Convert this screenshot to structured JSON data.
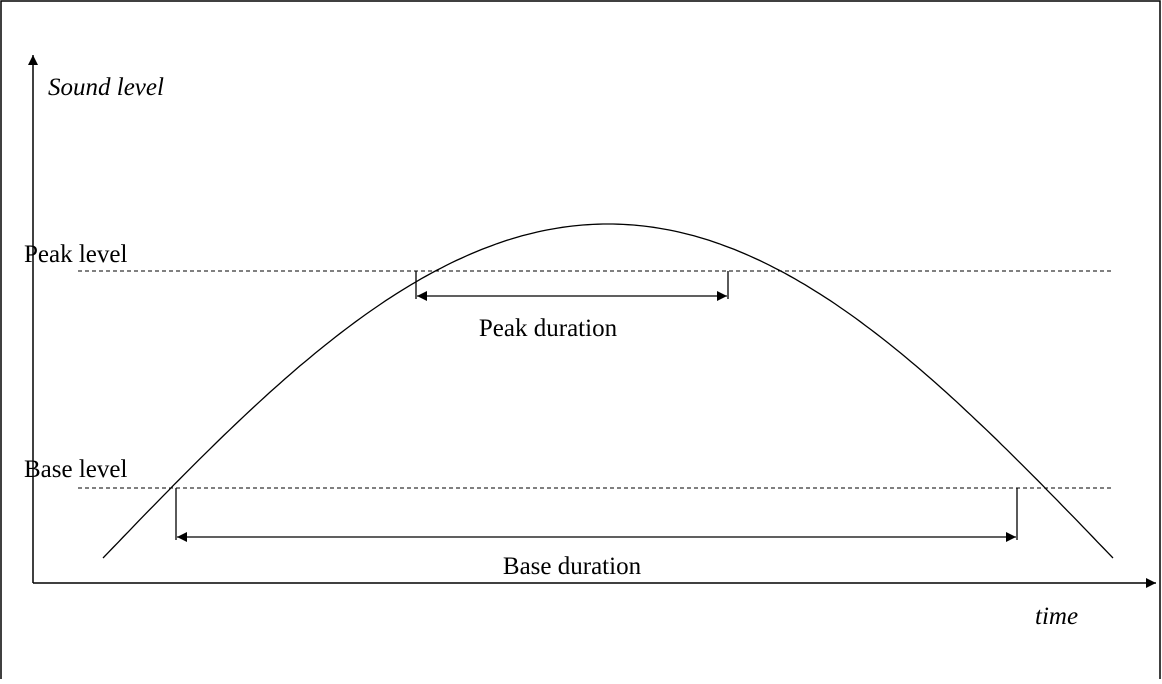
{
  "labels": {
    "y_axis": "Sound level",
    "x_axis": "time",
    "peak_level": "Peak level",
    "base_level": "Base level",
    "peak_duration": "Peak duration",
    "base_duration": "Base duration"
  }
}
